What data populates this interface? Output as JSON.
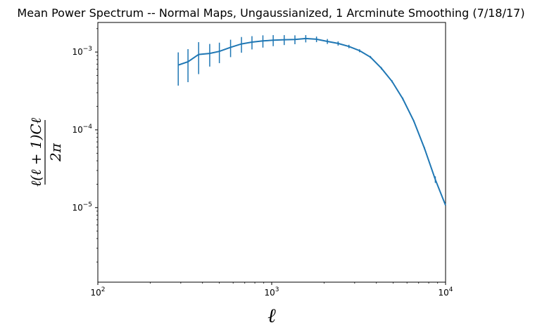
{
  "chart_data": {
    "type": "line",
    "title": "Mean Power Spectrum -- Normal Maps, Ungaussianized, 1 Arcminute Smoothing (7/18/17)",
    "xlabel": "ℓ",
    "ylabel": "ℓ(ℓ + 1)Cℓ / 2π",
    "xscale": "log",
    "yscale": "log",
    "xlim": [
      100,
      10000
    ],
    "ylim": [
      1.1e-06,
      0.0024
    ],
    "x_tick_labels": [
      "10^2",
      "10^3",
      "10^4"
    ],
    "y_tick_labels": [
      "10^-3",
      "10^-4",
      "10^-5"
    ],
    "color": "#1f77b4",
    "grid": false,
    "series": [
      {
        "x": [
          290,
          330,
          380,
          440,
          500,
          580,
          670,
          770,
          890,
          1020,
          1180,
          1360,
          1570,
          1810,
          2090,
          2410,
          2780,
          3200,
          3700,
          4270,
          4920,
          5680,
          6560,
          7560,
          8730,
          10000
        ],
        "y": [
          0.00068,
          0.00075,
          0.00093,
          0.00096,
          0.00102,
          0.00115,
          0.00127,
          0.00134,
          0.00139,
          0.00142,
          0.00144,
          0.00145,
          0.00149,
          0.00146,
          0.00137,
          0.00129,
          0.00118,
          0.00104,
          0.00086,
          0.00062,
          0.00042,
          0.00025,
          0.00013,
          5.8e-05,
          2.3e-05,
          1.07e-05
        ],
        "yerr": [
          0.00031,
          0.00034,
          0.00041,
          0.00031,
          0.0003,
          0.00029,
          0.00029,
          0.00026,
          0.00025,
          0.00023,
          0.00021,
          0.00019,
          0.00016,
          0.00012,
          0.0001,
          8e-05,
          6e-05,
          4.5e-05,
          3e-05,
          2.2e-05,
          1.4e-05,
          9e-06,
          4e-06,
          2.2e-06,
          2.2e-06,
          0
        ]
      }
    ]
  }
}
